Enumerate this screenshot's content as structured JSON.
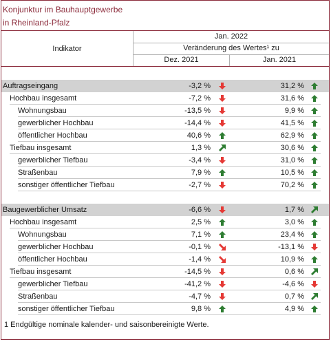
{
  "title": {
    "line1": "Konjunktur im Bauhauptgewerbe",
    "line2": "in Rheinland-Pfalz"
  },
  "header": {
    "indikator": "Indikator",
    "period": "Jan. 2022",
    "change_label": "Veränderung des Wertes¹ zu",
    "col1": "Dez. 2021",
    "col2": "Jan. 2021"
  },
  "colors": {
    "accent": "#8b2a3a",
    "up": "#2e7d32",
    "down": "#e53935",
    "section_bg": "#d2d2d2"
  },
  "rows": [
    {
      "label": "Auftragseingang",
      "level": 0,
      "section": true,
      "v1": "-3,2 %",
      "a1": "down",
      "v2": "31,2 %",
      "a2": "up"
    },
    {
      "label": "Hochbau insgesamt",
      "level": 1,
      "v1": "-7,2 %",
      "a1": "down",
      "v2": "31,6 %",
      "a2": "up"
    },
    {
      "label": "Wohnungsbau",
      "level": 2,
      "v1": "-13,5 %",
      "a1": "down",
      "v2": "9,9 %",
      "a2": "up"
    },
    {
      "label": "gewerblicher Hochbau",
      "level": 2,
      "v1": "-14,4 %",
      "a1": "down",
      "v2": "41,5 %",
      "a2": "up"
    },
    {
      "label": "öffentlicher Hochbau",
      "level": 2,
      "v1": "40,6 %",
      "a1": "up",
      "v2": "62,9 %",
      "a2": "up"
    },
    {
      "label": "Tiefbau insgesamt",
      "level": 1,
      "v1": "1,3 %",
      "a1": "up-right",
      "v2": "30,6 %",
      "a2": "up"
    },
    {
      "label": "gewerblicher Tiefbau",
      "level": 2,
      "v1": "-3,4 %",
      "a1": "down",
      "v2": "31,0 %",
      "a2": "up"
    },
    {
      "label": "Straßenbau",
      "level": 2,
      "v1": "7,9 %",
      "a1": "up",
      "v2": "10,5 %",
      "a2": "up"
    },
    {
      "label": "sonstiger öffentlicher Tiefbau",
      "level": 2,
      "v1": "-2,7 %",
      "a1": "down",
      "v2": "70,2 %",
      "a2": "up"
    },
    {
      "label": "Baugewerblicher Umsatz",
      "level": 0,
      "section": true,
      "v1": "-6,6 %",
      "a1": "down",
      "v2": "1,7 %",
      "a2": "up-right"
    },
    {
      "label": "Hochbau insgesamt",
      "level": 1,
      "v1": "2,5 %",
      "a1": "up",
      "v2": "3,0 %",
      "a2": "up"
    },
    {
      "label": "Wohnungsbau",
      "level": 2,
      "v1": "7,1 %",
      "a1": "up",
      "v2": "23,4 %",
      "a2": "up"
    },
    {
      "label": "gewerblicher Hochbau",
      "level": 2,
      "v1": "-0,1 %",
      "a1": "down-right",
      "v2": "-13,1 %",
      "a2": "down"
    },
    {
      "label": "öffentlicher Hochbau",
      "level": 2,
      "v1": "-1,4 %",
      "a1": "down-right",
      "v2": "10,9 %",
      "a2": "up"
    },
    {
      "label": "Tiefbau insgesamt",
      "level": 1,
      "v1": "-14,5 %",
      "a1": "down",
      "v2": "0,6 %",
      "a2": "up-right"
    },
    {
      "label": "gewerblicher Tiefbau",
      "level": 2,
      "v1": "-41,2 %",
      "a1": "down",
      "v2": "-4,6 %",
      "a2": "down"
    },
    {
      "label": "Straßenbau",
      "level": 2,
      "v1": "-4,7 %",
      "a1": "down",
      "v2": "0,7 %",
      "a2": "up-right"
    },
    {
      "label": "sonstiger öffentlicher Tiefbau",
      "level": 2,
      "v1": "9,8 %",
      "a1": "up",
      "v2": "4,9 %",
      "a2": "up"
    }
  ],
  "footnote": "1 Endgültige nominale kalender- und saisonbereinigte Werte."
}
